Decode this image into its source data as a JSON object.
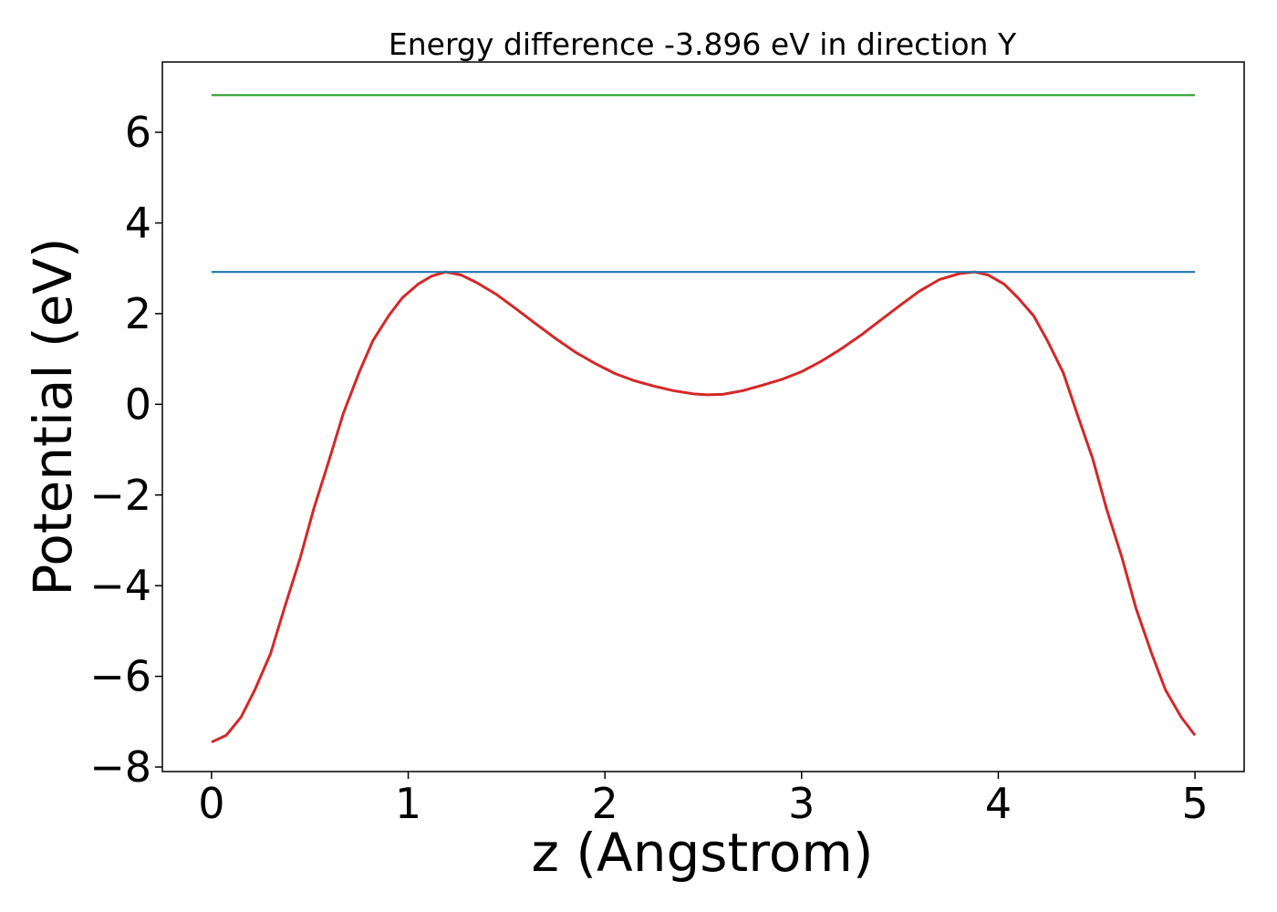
{
  "chart_data": {
    "type": "line",
    "title": "Energy difference -3.896 eV in direction Y",
    "xlabel": "z (Angstrom)",
    "ylabel": "Potential (eV)",
    "xlim": [
      -0.25,
      5.25
    ],
    "ylim": [
      -8.1,
      7.55
    ],
    "xticks": [
      0,
      1,
      2,
      3,
      4,
      5
    ],
    "xtick_labels": [
      "0",
      "1",
      "2",
      "3",
      "4",
      "5"
    ],
    "yticks": [
      -8,
      -6,
      -4,
      -2,
      0,
      2,
      4,
      6
    ],
    "ytick_labels": [
      "−8",
      "−6",
      "−4",
      "−2",
      "0",
      "2",
      "4",
      "6"
    ],
    "grid": false,
    "legend": "none",
    "series": [
      {
        "color": "#d62728",
        "x": [
          0,
          0.075,
          0.15,
          0.22,
          0.3,
          0.37,
          0.45,
          0.52,
          0.6,
          0.67,
          0.75,
          0.82,
          0.9,
          0.97,
          1.05,
          1.12,
          1.19,
          1.27,
          1.35,
          1.45,
          1.55,
          1.65,
          1.75,
          1.85,
          1.95,
          2.05,
          2.15,
          2.25,
          2.35,
          2.45,
          2.52,
          2.6,
          2.7,
          2.8,
          2.9,
          3.0,
          3.1,
          3.2,
          3.3,
          3.4,
          3.5,
          3.6,
          3.7,
          3.8,
          3.88,
          3.95,
          4.03,
          4.1,
          4.18,
          4.25,
          4.33,
          4.4,
          4.48,
          4.55,
          4.63,
          4.7,
          4.78,
          4.85,
          4.93,
          5.0
        ],
        "y": [
          -7.45,
          -7.3,
          -6.9,
          -6.3,
          -5.5,
          -4.5,
          -3.4,
          -2.3,
          -1.2,
          -0.2,
          0.7,
          1.4,
          1.95,
          2.35,
          2.65,
          2.83,
          2.92,
          2.85,
          2.68,
          2.42,
          2.1,
          1.77,
          1.45,
          1.15,
          0.9,
          0.68,
          0.52,
          0.4,
          0.3,
          0.23,
          0.21,
          0.22,
          0.3,
          0.42,
          0.55,
          0.72,
          0.95,
          1.22,
          1.52,
          1.85,
          2.18,
          2.5,
          2.75,
          2.88,
          2.92,
          2.85,
          2.65,
          2.35,
          1.95,
          1.4,
          0.7,
          -0.2,
          -1.2,
          -2.3,
          -3.4,
          -4.5,
          -5.5,
          -6.3,
          -6.9,
          -7.3
        ]
      },
      {
        "color": "#1f77b4",
        "x": [
          0,
          5.0
        ],
        "y": [
          2.92,
          2.92
        ]
      },
      {
        "color": "#2ca02c",
        "x": [
          0,
          5.0
        ],
        "y": [
          6.82,
          6.82
        ]
      }
    ]
  }
}
